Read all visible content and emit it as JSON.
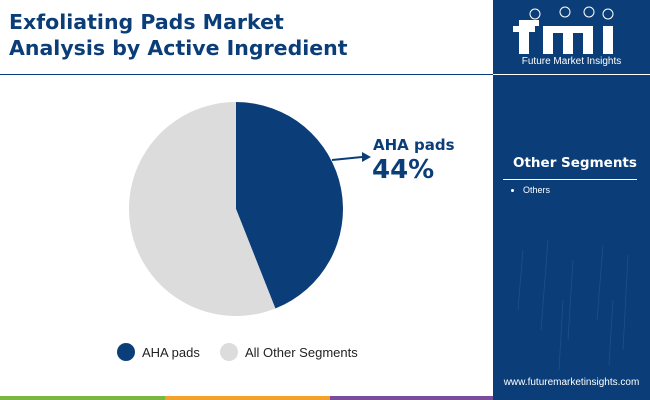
{
  "header": {
    "title_line1": "Exfoliating Pads Market",
    "title_line2": "Analysis by Active Ingredient"
  },
  "brand": {
    "logo_text": "fmi",
    "company_name": "Future Market Insights",
    "url": "www.futuremarketinsights.com"
  },
  "side_panel": {
    "title": "Other Segments",
    "items": [
      "Others"
    ]
  },
  "callout": {
    "label": "AHA pads",
    "value": "44%"
  },
  "colors": {
    "primary": "#0b3e79",
    "secondary": "#dcdcdc",
    "bar": [
      "#7ab642",
      "#f2a22c",
      "#7b4c9c",
      "#0b3e79"
    ]
  },
  "chart_data": {
    "type": "pie",
    "title": "Exfoliating Pads Market Analysis by Active Ingredient",
    "series": [
      {
        "name": "AHA pads",
        "value": 44,
        "color": "#0b3e79"
      },
      {
        "name": "All Other Segments",
        "value": 56,
        "color": "#dcdcdc"
      }
    ],
    "legend_position": "bottom",
    "start_angle_deg": 0,
    "direction": "clockwise"
  }
}
